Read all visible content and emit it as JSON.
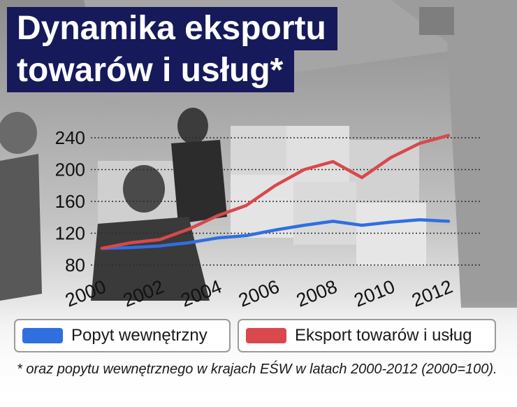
{
  "title": {
    "line1": "Dynamika eksportu",
    "line2": "towarów i usług*"
  },
  "footnote": "* oraz popytu wewnętrznego w krajach EŚW w latach 2000-2012 (2000=100).",
  "colors": {
    "title_background": "#16195a",
    "domestic_series": "#2f6fe0",
    "export_series": "#d9484c"
  },
  "chart_data": {
    "type": "line",
    "title": "Dynamika eksportu towarów i usług*",
    "xlabel": "",
    "ylabel": "",
    "ylim": [
      80,
      260
    ],
    "yticks": [
      "80",
      "120",
      "160",
      "200",
      "240"
    ],
    "xticks": [
      "2000",
      "2002",
      "2004",
      "2006",
      "2008",
      "2010",
      "2012"
    ],
    "x": [
      2000,
      2001,
      2002,
      2003,
      2004,
      2005,
      2006,
      2007,
      2008,
      2009,
      2010,
      2011,
      2012
    ],
    "grid": "horizontal dotted",
    "legend_position": "bottom",
    "series": [
      {
        "name": "Popyt wewnętrzny",
        "color": "#2f6fe0",
        "values": [
          101,
          102,
          104,
          108,
          114,
          117,
          124,
          130,
          135,
          130,
          134,
          137,
          135
        ]
      },
      {
        "name": "Eksport towarów i usług",
        "color": "#d9484c",
        "values": [
          101,
          108,
          112,
          125,
          142,
          155,
          180,
          200,
          210,
          190,
          215,
          233,
          243
        ]
      }
    ]
  }
}
